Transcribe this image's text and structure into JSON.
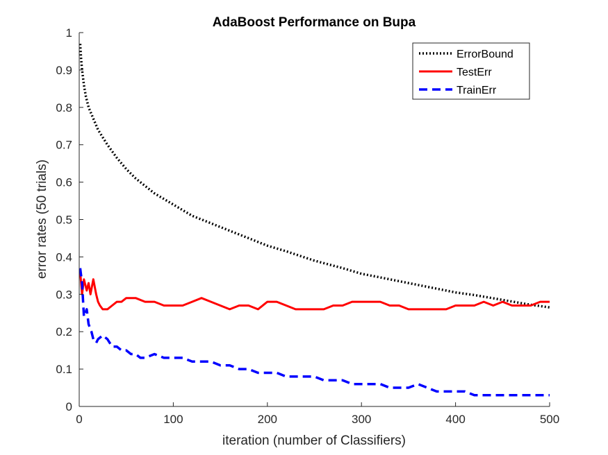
{
  "chart_data": {
    "type": "line",
    "title": "AdaBoost Performance on Bupa",
    "xlabel": "iteration (number of Classifiers)",
    "ylabel": "error rates (50 trials)",
    "xlim": [
      0,
      500
    ],
    "ylim": [
      0,
      1
    ],
    "xticks": [
      "0",
      "100",
      "200",
      "300",
      "400",
      "500"
    ],
    "yticks": [
      "0",
      "0.1",
      "0.2",
      "0.3",
      "0.4",
      "0.5",
      "0.6",
      "0.7",
      "0.8",
      "0.9",
      "1"
    ],
    "grid": false,
    "legend_position": "top-right",
    "series": [
      {
        "name": "ErrorBound",
        "color": "#000000",
        "style": "dotted",
        "x": [
          1,
          2,
          3,
          5,
          7,
          10,
          15,
          20,
          25,
          30,
          40,
          50,
          60,
          70,
          80,
          100,
          120,
          140,
          160,
          180,
          200,
          220,
          250,
          280,
          300,
          320,
          350,
          380,
          400,
          420,
          450,
          480,
          500
        ],
        "y": [
          0.97,
          0.93,
          0.9,
          0.86,
          0.83,
          0.8,
          0.77,
          0.74,
          0.72,
          0.7,
          0.665,
          0.635,
          0.61,
          0.59,
          0.57,
          0.54,
          0.51,
          0.49,
          0.47,
          0.45,
          0.43,
          0.415,
          0.39,
          0.37,
          0.355,
          0.345,
          0.33,
          0.315,
          0.305,
          0.298,
          0.285,
          0.272,
          0.265
        ]
      },
      {
        "name": "TestErr",
        "color": "#ff0000",
        "style": "solid",
        "x": [
          1,
          3,
          5,
          8,
          10,
          12,
          15,
          18,
          20,
          22,
          25,
          30,
          35,
          40,
          45,
          50,
          55,
          60,
          70,
          80,
          90,
          100,
          110,
          120,
          130,
          140,
          150,
          160,
          170,
          180,
          190,
          200,
          210,
          220,
          230,
          240,
          250,
          260,
          270,
          280,
          290,
          300,
          310,
          320,
          330,
          340,
          350,
          360,
          370,
          380,
          390,
          400,
          410,
          420,
          430,
          440,
          450,
          460,
          470,
          480,
          490,
          500
        ],
        "y": [
          0.36,
          0.3,
          0.34,
          0.31,
          0.33,
          0.3,
          0.34,
          0.3,
          0.28,
          0.27,
          0.26,
          0.26,
          0.27,
          0.28,
          0.28,
          0.29,
          0.29,
          0.29,
          0.28,
          0.28,
          0.27,
          0.27,
          0.27,
          0.28,
          0.29,
          0.28,
          0.27,
          0.26,
          0.27,
          0.27,
          0.26,
          0.28,
          0.28,
          0.27,
          0.26,
          0.26,
          0.26,
          0.26,
          0.27,
          0.27,
          0.28,
          0.28,
          0.28,
          0.28,
          0.27,
          0.27,
          0.26,
          0.26,
          0.26,
          0.26,
          0.26,
          0.27,
          0.27,
          0.27,
          0.28,
          0.27,
          0.28,
          0.27,
          0.27,
          0.27,
          0.28,
          0.28
        ]
      },
      {
        "name": "TrainErr",
        "color": "#0000ff",
        "style": "dashed",
        "x": [
          1,
          3,
          5,
          8,
          10,
          13,
          15,
          18,
          20,
          25,
          30,
          35,
          40,
          45,
          50,
          55,
          60,
          65,
          70,
          80,
          90,
          100,
          110,
          120,
          130,
          140,
          150,
          160,
          170,
          180,
          190,
          200,
          210,
          220,
          230,
          240,
          250,
          260,
          270,
          280,
          290,
          300,
          310,
          320,
          330,
          340,
          350,
          360,
          370,
          380,
          390,
          400,
          410,
          420,
          430,
          440,
          450,
          460,
          470,
          480,
          490,
          500
        ],
        "y": [
          0.37,
          0.33,
          0.24,
          0.26,
          0.22,
          0.2,
          0.18,
          0.17,
          0.18,
          0.19,
          0.18,
          0.16,
          0.16,
          0.15,
          0.15,
          0.14,
          0.14,
          0.13,
          0.13,
          0.14,
          0.13,
          0.13,
          0.13,
          0.12,
          0.12,
          0.12,
          0.11,
          0.11,
          0.1,
          0.1,
          0.09,
          0.09,
          0.09,
          0.08,
          0.08,
          0.08,
          0.08,
          0.07,
          0.07,
          0.07,
          0.06,
          0.06,
          0.06,
          0.06,
          0.05,
          0.05,
          0.05,
          0.06,
          0.05,
          0.04,
          0.04,
          0.04,
          0.04,
          0.03,
          0.03,
          0.03,
          0.03,
          0.03,
          0.03,
          0.03,
          0.03,
          0.03
        ]
      }
    ]
  }
}
